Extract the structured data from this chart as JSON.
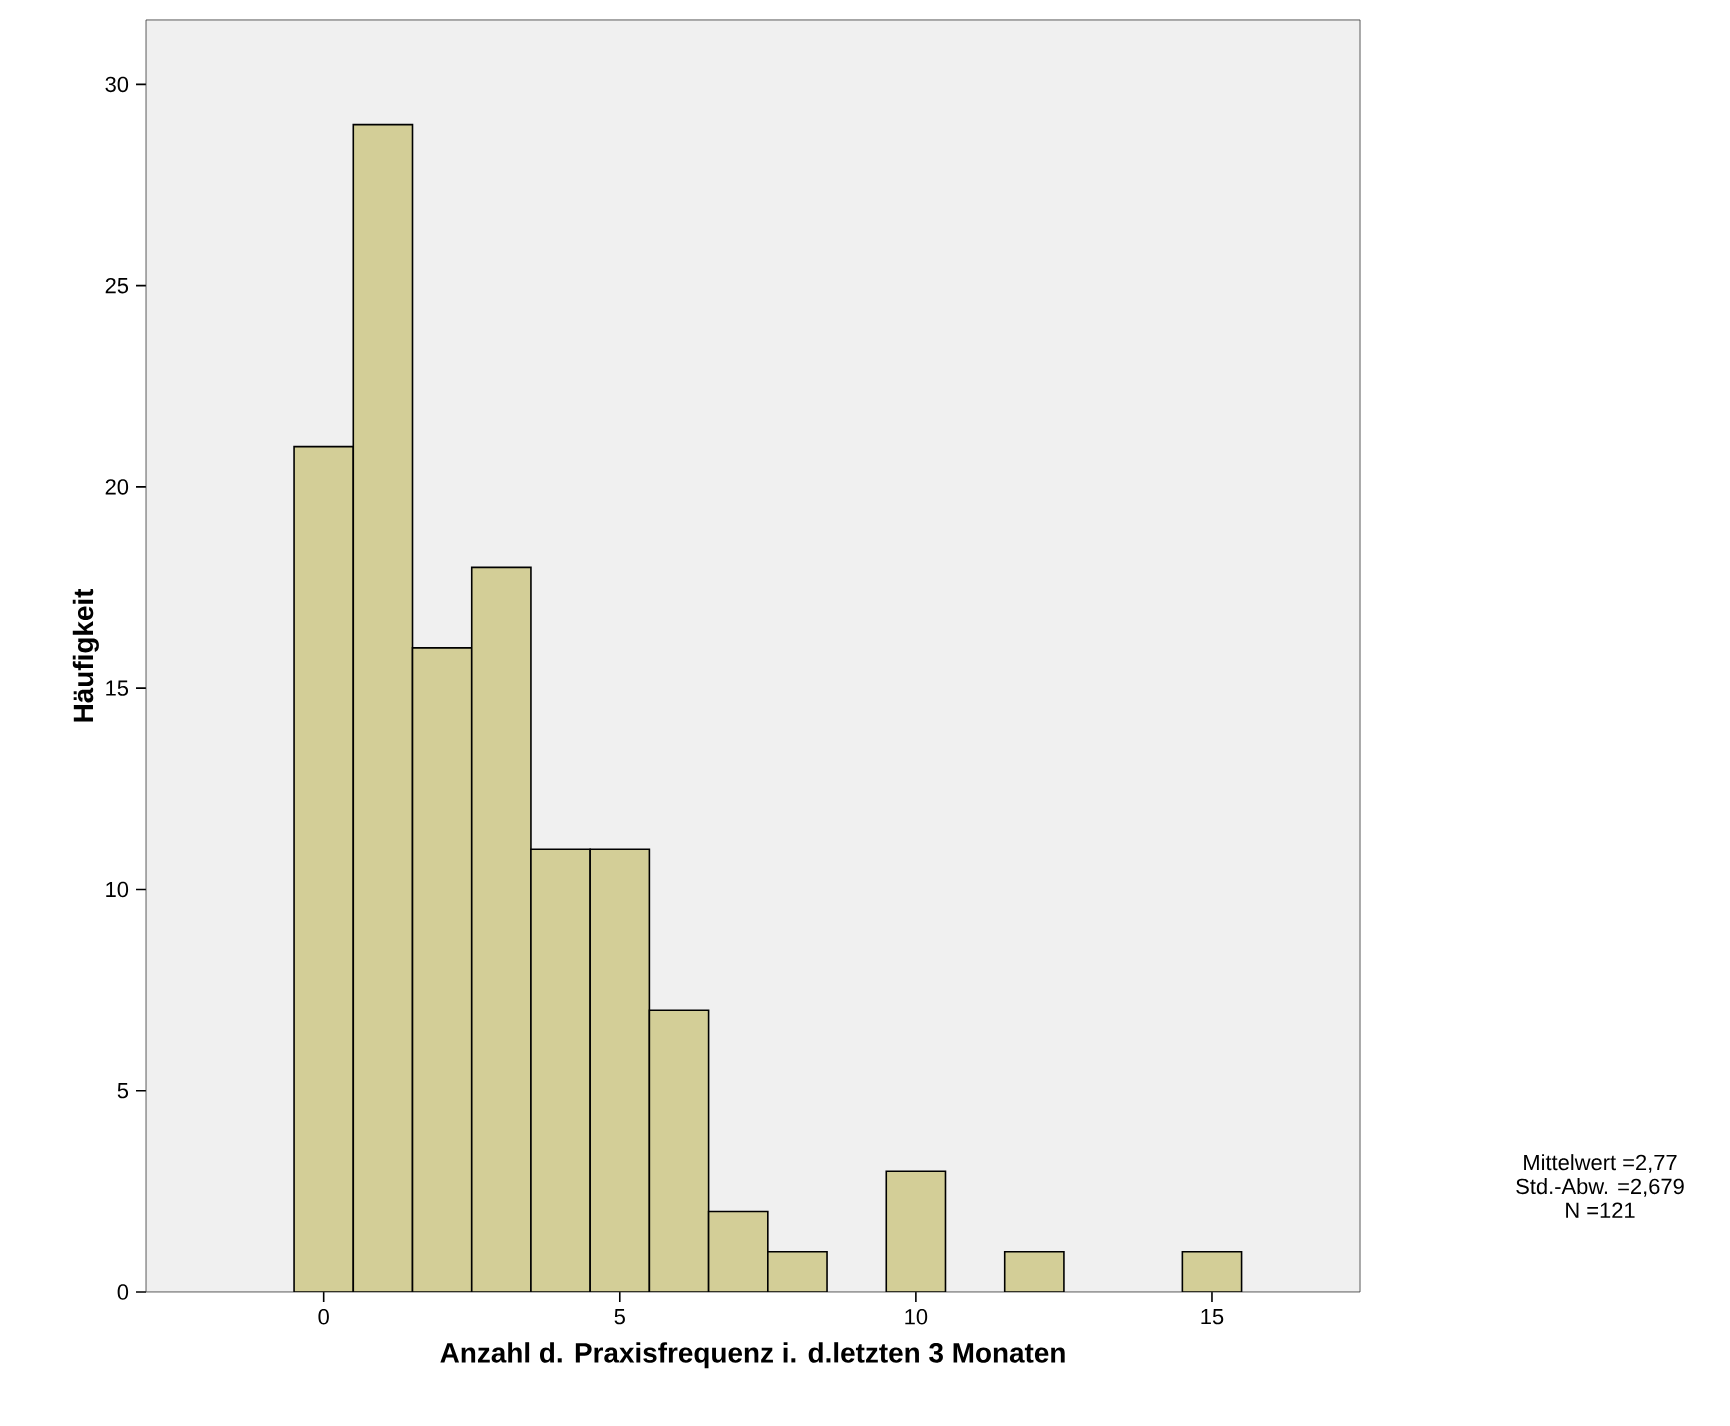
{
  "chart_data": {
    "type": "histogram",
    "xlabel": "Anzahl d. Praxisfrequenz i. d.letzten 3 Monaten",
    "ylabel": "Häufigkeit",
    "bins": [
      -0.5,
      0.5,
      1.5,
      2.5,
      3.5,
      4.5,
      5.5,
      6.5,
      7.5,
      8.5,
      9.5,
      10.5,
      11.5,
      12.5,
      13.5,
      14.5,
      15.5
    ],
    "values": [
      21,
      29,
      16,
      18,
      11,
      11,
      7,
      2,
      1,
      0,
      3,
      0,
      1,
      0,
      0,
      1
    ],
    "color": "#d3ce97",
    "xlim": [
      -3,
      17.5
    ],
    "xticks": [
      0,
      5,
      10,
      15
    ],
    "ylim": [
      0,
      31.6
    ],
    "yticks": [
      0,
      5,
      10,
      15,
      20,
      25,
      30
    ],
    "grid": false,
    "annotations": [
      "Mittelwert =2,77",
      "Std.-Abw. =2,679",
      "N =121"
    ]
  }
}
